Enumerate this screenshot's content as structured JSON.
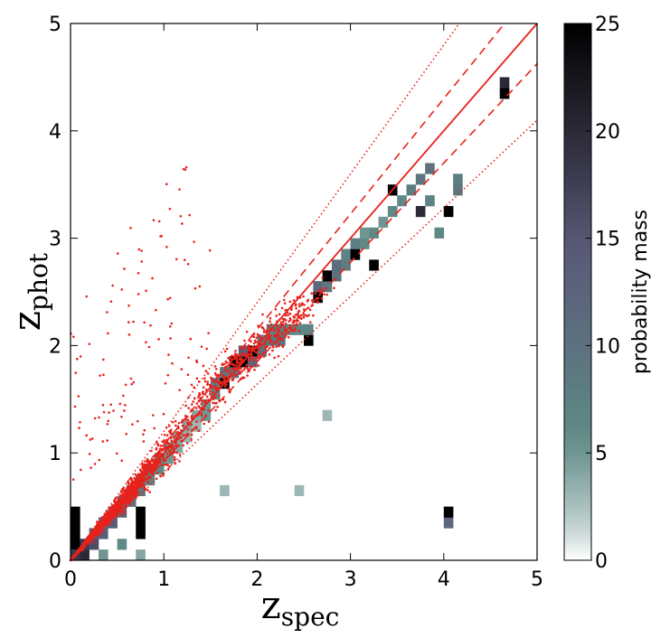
{
  "chart_data": {
    "type": "heatmap",
    "title": "",
    "xlabel": {
      "main": "z",
      "sub": "spec"
    },
    "ylabel": {
      "main": "z",
      "sub": "phot"
    },
    "xlim": [
      0,
      5
    ],
    "ylim": [
      0,
      5
    ],
    "xticks": [
      "0",
      "1",
      "2",
      "3",
      "4",
      "5"
    ],
    "yticks": [
      "0",
      "1",
      "2",
      "3",
      "4",
      "5"
    ],
    "grid": false,
    "colorbar": {
      "label": "probability mass",
      "range": [
        0,
        25
      ],
      "ticks": [
        "0",
        "5",
        "10",
        "15",
        "20",
        "25"
      ],
      "colors": [
        "#ffffff",
        "#5e8a86",
        "#5a5a78",
        "#000000"
      ]
    },
    "reference_lines": [
      {
        "name": "one-to-one",
        "slope": 1.0,
        "style": "solid",
        "color": "#e8211b"
      },
      {
        "name": "upper-dashed",
        "slope": 1.075,
        "style": "dashed",
        "color": "#e8211b"
      },
      {
        "name": "lower-dashed",
        "slope": 0.925,
        "style": "dashed",
        "color": "#e8211b"
      },
      {
        "name": "upper-dotted",
        "slope": 1.2,
        "style": "dotted",
        "color": "#e8211b"
      },
      {
        "name": "lower-dotted",
        "slope": 0.82,
        "style": "dotted",
        "color": "#e8211b"
      }
    ],
    "heatmap_cell_size": 0.1,
    "heatmap_cells": [
      [
        0.0,
        0.1,
        25
      ],
      [
        0.0,
        0.2,
        25
      ],
      [
        0.0,
        0.3,
        25
      ],
      [
        0.0,
        0.4,
        25
      ],
      [
        0.0,
        0.0,
        18
      ],
      [
        0.1,
        0.0,
        20
      ],
      [
        0.1,
        0.1,
        18
      ],
      [
        0.2,
        0.1,
        16
      ],
      [
        0.2,
        0.2,
        14
      ],
      [
        0.3,
        0.2,
        14
      ],
      [
        0.3,
        0.3,
        12
      ],
      [
        0.4,
        0.3,
        14
      ],
      [
        0.4,
        0.4,
        12
      ],
      [
        0.5,
        0.4,
        12
      ],
      [
        0.5,
        0.5,
        10
      ],
      [
        0.6,
        0.5,
        10
      ],
      [
        0.6,
        0.6,
        8
      ],
      [
        0.7,
        0.2,
        25
      ],
      [
        0.7,
        0.3,
        25
      ],
      [
        0.7,
        0.4,
        25
      ],
      [
        0.7,
        0.6,
        9
      ],
      [
        0.7,
        0.7,
        8
      ],
      [
        0.8,
        0.7,
        7
      ],
      [
        0.8,
        0.8,
        8
      ],
      [
        0.9,
        0.8,
        6
      ],
      [
        0.9,
        0.9,
        6
      ],
      [
        1.0,
        0.9,
        5
      ],
      [
        1.0,
        1.0,
        5
      ],
      [
        1.1,
        1.0,
        4
      ],
      [
        1.1,
        1.1,
        4
      ],
      [
        1.2,
        1.1,
        3
      ],
      [
        1.2,
        1.2,
        4
      ],
      [
        1.3,
        1.2,
        3
      ],
      [
        1.3,
        1.3,
        4
      ],
      [
        1.4,
        1.3,
        5
      ],
      [
        1.4,
        1.4,
        5
      ],
      [
        1.5,
        1.5,
        6
      ],
      [
        1.5,
        1.6,
        8
      ],
      [
        1.6,
        1.6,
        25
      ],
      [
        1.6,
        1.7,
        9
      ],
      [
        1.7,
        1.7,
        10
      ],
      [
        1.7,
        1.8,
        25
      ],
      [
        1.8,
        1.8,
        25
      ],
      [
        1.8,
        1.9,
        14
      ],
      [
        1.9,
        1.8,
        12
      ],
      [
        1.9,
        1.9,
        25
      ],
      [
        2.0,
        1.9,
        10
      ],
      [
        2.0,
        2.0,
        8
      ],
      [
        2.1,
        2.0,
        9
      ],
      [
        2.1,
        2.1,
        7
      ],
      [
        2.2,
        2.0,
        10
      ],
      [
        2.2,
        2.1,
        8
      ],
      [
        2.3,
        2.1,
        6
      ],
      [
        2.4,
        2.1,
        6
      ],
      [
        2.5,
        2.0,
        25
      ],
      [
        2.5,
        2.1,
        7
      ],
      [
        2.6,
        2.4,
        25
      ],
      [
        2.6,
        2.5,
        12
      ],
      [
        2.7,
        2.5,
        9
      ],
      [
        2.7,
        2.6,
        25
      ],
      [
        2.8,
        2.6,
        10
      ],
      [
        2.8,
        2.7,
        11
      ],
      [
        2.9,
        2.7,
        8
      ],
      [
        2.9,
        2.8,
        7
      ],
      [
        3.0,
        2.8,
        25
      ],
      [
        3.0,
        2.9,
        8
      ],
      [
        3.1,
        2.9,
        6
      ],
      [
        3.1,
        3.0,
        5
      ],
      [
        3.2,
        2.7,
        25
      ],
      [
        3.2,
        3.0,
        6
      ],
      [
        3.3,
        3.1,
        5
      ],
      [
        3.4,
        3.4,
        25
      ],
      [
        3.4,
        3.2,
        6
      ],
      [
        3.5,
        3.3,
        6
      ],
      [
        3.6,
        3.4,
        8
      ],
      [
        3.7,
        3.2,
        20
      ],
      [
        3.7,
        3.5,
        9
      ],
      [
        3.8,
        3.3,
        7
      ],
      [
        3.8,
        3.6,
        10
      ],
      [
        3.9,
        3.0,
        6
      ],
      [
        4.0,
        3.2,
        25
      ],
      [
        4.1,
        3.4,
        9
      ],
      [
        4.1,
        3.5,
        8
      ],
      [
        4.0,
        0.3,
        12
      ],
      [
        4.0,
        0.4,
        25
      ],
      [
        4.6,
        4.3,
        25
      ],
      [
        4.6,
        4.4,
        20
      ],
      [
        0.7,
        0.0,
        4
      ],
      [
        0.3,
        0.0,
        5
      ],
      [
        0.5,
        0.1,
        6
      ],
      [
        2.4,
        0.6,
        3
      ],
      [
        2.7,
        1.3,
        3
      ],
      [
        1.6,
        0.6,
        3
      ]
    ],
    "point_color": "#e8211b",
    "point_clusters": [
      {
        "center": [
          0.4,
          0.4
        ],
        "spread": 0.12,
        "count": 900,
        "scaling": "proportional"
      },
      {
        "center": [
          1.0,
          1.0
        ],
        "spread": 0.15,
        "count": 350,
        "scaling": "proportional"
      },
      {
        "center": [
          1.8,
          1.85
        ],
        "spread": 0.15,
        "count": 280,
        "scaling": "flat"
      },
      {
        "center": [
          2.3,
          2.15
        ],
        "spread": 0.1,
        "count": 150,
        "scaling": "flat"
      },
      {
        "center": [
          0.6,
          1.5
        ],
        "spread": 0.6,
        "count": 120,
        "scaling": "scatter"
      }
    ]
  }
}
